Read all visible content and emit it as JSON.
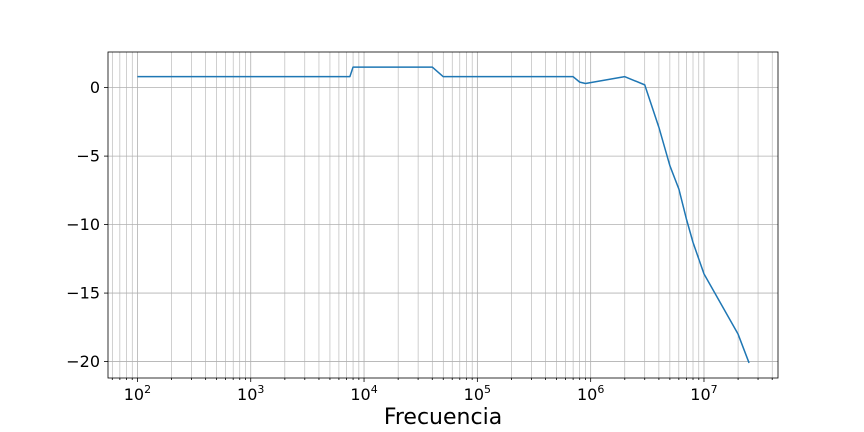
{
  "chart_data": {
    "type": "line",
    "xscale": "log",
    "xlabel": "Frecuencia",
    "ylabel": "",
    "title": "",
    "grid": true,
    "xlim": [
      55,
      45000000
    ],
    "ylim": [
      -21.2,
      2.6
    ],
    "xticks": [
      {
        "value": 100,
        "mantissa": "10",
        "exp": "2"
      },
      {
        "value": 1000,
        "mantissa": "10",
        "exp": "3"
      },
      {
        "value": 10000,
        "mantissa": "10",
        "exp": "4"
      },
      {
        "value": 100000,
        "mantissa": "10",
        "exp": "5"
      },
      {
        "value": 1000000,
        "mantissa": "10",
        "exp": "6"
      },
      {
        "value": 10000000,
        "mantissa": "10",
        "exp": "7"
      }
    ],
    "yticks": [
      {
        "value": 0,
        "label": "0"
      },
      {
        "value": -5,
        "label": "−5"
      },
      {
        "value": -10,
        "label": "−10"
      },
      {
        "value": -15,
        "label": "−15"
      },
      {
        "value": -20,
        "label": "−20"
      }
    ],
    "series": [
      {
        "color": "#1f77b4",
        "x": [
          100,
          7500,
          8000,
          9000,
          40000,
          50000,
          100000,
          700000,
          800000,
          900000,
          2000000,
          3000000,
          4000000,
          5000000,
          6000000,
          7000000,
          8000000,
          10000000,
          20000000,
          25000000
        ],
        "y": [
          0.8,
          0.8,
          1.5,
          1.5,
          1.5,
          0.8,
          0.8,
          0.8,
          0.4,
          0.3,
          0.8,
          0.2,
          -2.9,
          -5.7,
          -7.4,
          -9.6,
          -11.3,
          -13.6,
          -18.0,
          -20.1
        ]
      }
    ]
  }
}
